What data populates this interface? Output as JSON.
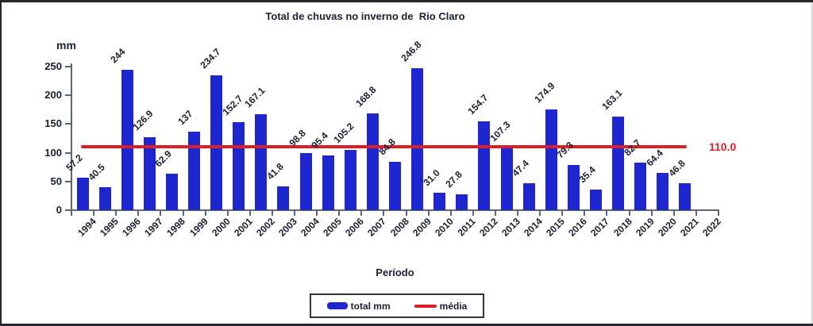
{
  "chart_data": {
    "type": "bar",
    "title": "Total de chuvas no inverno de  Rio Claro",
    "ylabel": "mm",
    "xlabel": "Período",
    "ylim": [
      0,
      250
    ],
    "yticks": [
      0,
      50,
      100,
      150,
      200,
      250
    ],
    "grid": false,
    "categories": [
      "1994",
      "1995",
      "1996",
      "1997",
      "1998",
      "1999",
      "2000",
      "2001",
      "2002",
      "2003",
      "2004",
      "2005",
      "2006",
      "2007",
      "2008",
      "2009",
      "2010",
      "2011",
      "2012",
      "2013",
      "2014",
      "2015",
      "2016",
      "2017",
      "2018",
      "2019",
      "2020",
      "2021",
      "2022"
    ],
    "series": [
      {
        "name": "total mm",
        "type": "bar",
        "color": "#1e27cf",
        "values": [
          57.2,
          40.5,
          244,
          126.9,
          62.9,
          137,
          234.7,
          152.7,
          167.1,
          41.8,
          98.8,
          95.4,
          105.2,
          168.8,
          84.8,
          246.8,
          31.0,
          27.8,
          154.7,
          107.3,
          47.4,
          174.9,
          79.3,
          35.4,
          163.1,
          82.7,
          64.4,
          46.8,
          null
        ],
        "labels": [
          "57.2",
          "40.5",
          "244",
          "126.9",
          "62.9",
          "137",
          "234.7",
          "152.7",
          "167.1",
          "41.8",
          "98.8",
          "95.4",
          "105.2",
          "168.8",
          "84.8",
          "246.8",
          "31.0",
          "27.8",
          "154.7",
          "107.3",
          "47.4",
          "174.9",
          "79.3",
          "35.4",
          "163.1",
          "82.7",
          "64.4",
          "46.8",
          ""
        ]
      },
      {
        "name": "média",
        "type": "line",
        "color": "#da2128",
        "value": 110,
        "label": "110.0"
      }
    ],
    "legend": {
      "position": "bottom",
      "items": [
        {
          "label": "total mm",
          "swatch": "bar",
          "color": "#1e27cf"
        },
        {
          "label": "média",
          "swatch": "line",
          "color": "#da2128"
        }
      ]
    }
  },
  "colors": {
    "bar": "#1e27cf",
    "mean_line": "#da2128",
    "axis": "#5c6674",
    "text": "#1b2030",
    "background": "#ffffff",
    "frame_border": "#26262e"
  }
}
